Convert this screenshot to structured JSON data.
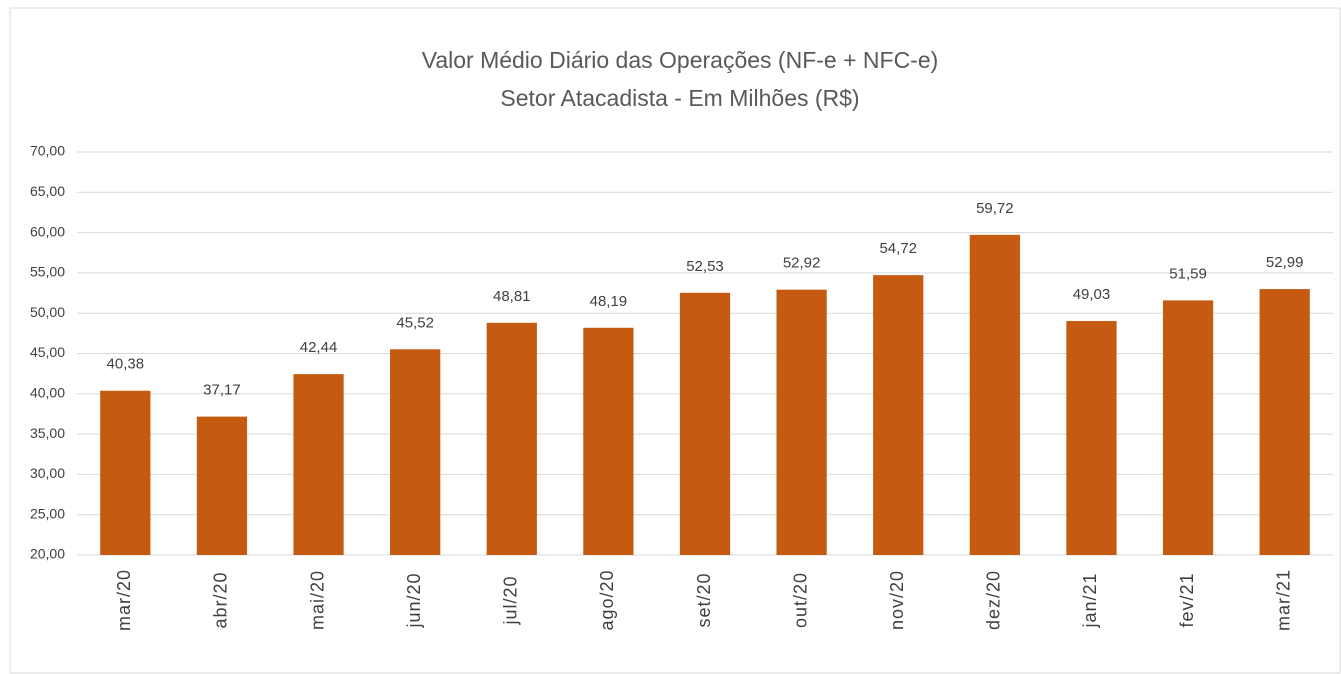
{
  "chart_data": {
    "type": "bar",
    "title": "Valor Médio Diário das Operações (NF-e + NFC-e)",
    "subtitle": "Setor Atacadista - Em Milhões (R$)",
    "categories": [
      "mar/20",
      "abr/20",
      "mai/20",
      "jun/20",
      "jul/20",
      "ago/20",
      "set/20",
      "out/20",
      "nov/20",
      "dez/20",
      "jan/21",
      "fev/21",
      "mar/21"
    ],
    "values": [
      40.38,
      37.17,
      42.44,
      45.52,
      48.81,
      48.19,
      52.53,
      52.92,
      54.72,
      59.72,
      49.03,
      51.59,
      52.99
    ],
    "value_labels": [
      "40,38",
      "37,17",
      "42,44",
      "45,52",
      "48,81",
      "48,19",
      "52,53",
      "52,92",
      "54,72",
      "59,72",
      "49,03",
      "51,59",
      "52,99"
    ],
    "color": "#c55a11",
    "ylim": [
      20,
      70
    ],
    "yticks": [
      {
        "value": 20,
        "label": "20,00"
      },
      {
        "value": 25,
        "label": "25,00"
      },
      {
        "value": 30,
        "label": "30,00"
      },
      {
        "value": 35,
        "label": "35,00"
      },
      {
        "value": 40,
        "label": "40,00"
      },
      {
        "value": 45,
        "label": "45,00"
      },
      {
        "value": 50,
        "label": "50,00"
      },
      {
        "value": 55,
        "label": "55,00"
      },
      {
        "value": 60,
        "label": "60,00"
      },
      {
        "value": 65,
        "label": "65,00"
      },
      {
        "value": 70,
        "label": "70,00"
      }
    ],
    "grid": true
  }
}
